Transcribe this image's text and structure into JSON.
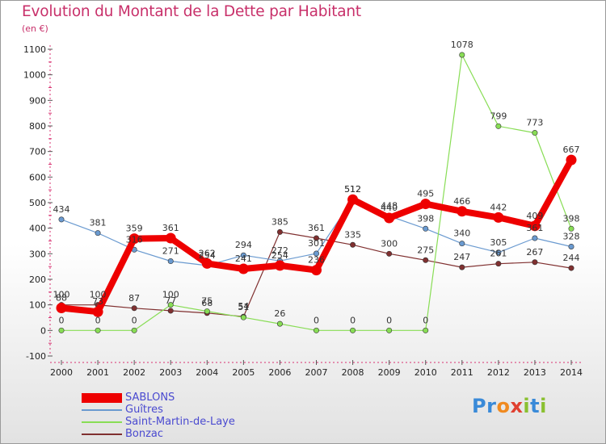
{
  "title": "Evolution du Montant de la Dette par Habitant",
  "subtitle": "(en €)",
  "logo": {
    "letters": [
      "P",
      "r",
      "o",
      "x",
      "i",
      "t",
      "i"
    ],
    "colors": [
      "#3a8ad8",
      "#3a8ad8",
      "#f08a20",
      "#e04030",
      "#8ac030",
      "#3a8ad8",
      "#8ac030"
    ]
  },
  "chart_data": {
    "type": "line",
    "title": "Evolution du Montant de la Dette par Habitant",
    "subtitle": "(en €)",
    "xlabel": "",
    "ylabel": "",
    "x": [
      2000,
      2001,
      2002,
      2003,
      2004,
      2005,
      2006,
      2007,
      2008,
      2009,
      2010,
      2011,
      2012,
      2013,
      2014
    ],
    "ylim": [
      -100,
      1100
    ],
    "yticks": [
      -100,
      0,
      100,
      200,
      300,
      400,
      500,
      600,
      700,
      800,
      900,
      1000,
      1100
    ],
    "grid": false,
    "legend_position": "bottom-left",
    "series": [
      {
        "name": "SABLONS",
        "color": "#ee0000",
        "values": [
          88,
          73,
          359,
          361,
          262,
          241,
          254,
          236,
          512,
          440,
          495,
          466,
          442,
          409,
          667
        ],
        "labels": [
          "88",
          "73",
          "359",
          "361",
          "262",
          "241",
          "254",
          "236",
          "512",
          "440",
          "495",
          "466",
          "442",
          "409",
          "667"
        ]
      },
      {
        "name": "Guîtres",
        "color": "#6a9ad0",
        "values": [
          434,
          381,
          316,
          271,
          254,
          294,
          272,
          301,
          512,
          448,
          398,
          340,
          305,
          361,
          328
        ],
        "labels": [
          "434",
          "381",
          "316",
          "271",
          "254",
          "294",
          "272",
          "301",
          "512",
          "448",
          "398",
          "340",
          "305",
          "361",
          "328"
        ]
      },
      {
        "name": "Saint-Martin-de-Laye",
        "color": "#88dd55",
        "values": [
          0,
          0,
          0,
          100,
          75,
          51,
          26,
          0,
          0,
          0,
          0,
          1078,
          799,
          773,
          398
        ],
        "labels": [
          "0",
          "0",
          "0",
          "100",
          "75",
          "51",
          "26",
          "0",
          "0",
          "0",
          "0",
          "1078",
          "799",
          "773",
          "398"
        ]
      },
      {
        "name": "Bonzac",
        "color": "#803030",
        "values": [
          100,
          100,
          87,
          77,
          68,
          54,
          385,
          361,
          335,
          300,
          275,
          247,
          261,
          267,
          244
        ],
        "labels": [
          "100",
          "100",
          "87",
          "77",
          "68",
          "54",
          "385",
          "361",
          "335",
          "300",
          "275",
          "247",
          "261",
          "267",
          "244"
        ]
      }
    ]
  }
}
